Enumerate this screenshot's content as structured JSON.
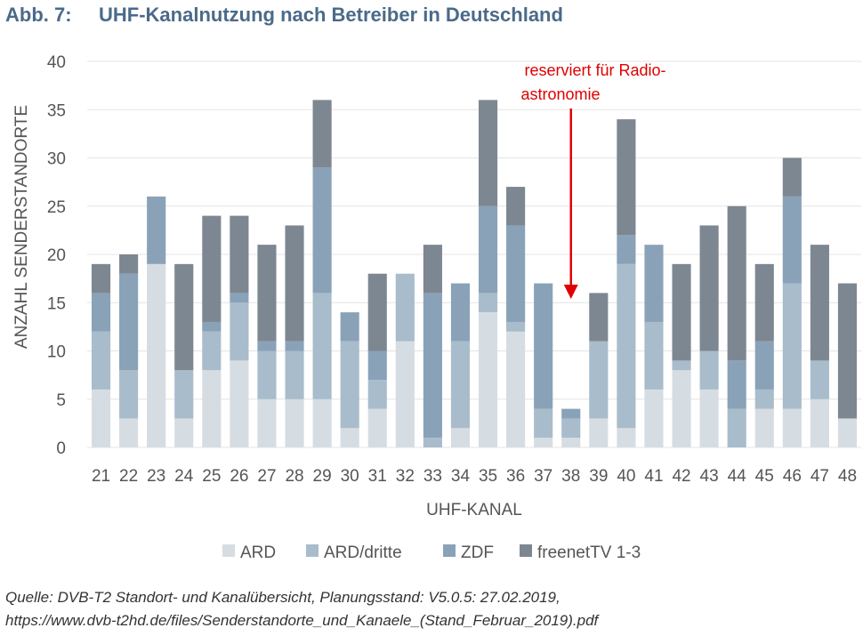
{
  "header": {
    "prefix": "Abb. 7:",
    "title": "UHF-Kanalnutzung nach Betreiber in Deutschland"
  },
  "chart_data": {
    "type": "bar",
    "stacked": true,
    "categories": [
      "21",
      "22",
      "23",
      "24",
      "25",
      "26",
      "27",
      "28",
      "29",
      "30",
      "31",
      "32",
      "33",
      "34",
      "35",
      "36",
      "37",
      "38",
      "39",
      "40",
      "41",
      "42",
      "43",
      "44",
      "45",
      "46",
      "47",
      "48"
    ],
    "series": [
      {
        "name": "ARD",
        "color": "#d6dde2",
        "values": [
          6,
          3,
          19,
          3,
          8,
          9,
          5,
          5,
          5,
          2,
          4,
          11,
          0,
          2,
          14,
          12,
          1,
          1,
          3,
          2,
          6,
          8,
          6,
          0,
          4,
          4,
          5,
          3
        ]
      },
      {
        "name": "ARD/dritte",
        "color": "#a9bccb",
        "values": [
          6,
          5,
          0,
          5,
          4,
          6,
          5,
          5,
          11,
          9,
          3,
          7,
          1,
          9,
          2,
          1,
          3,
          2,
          8,
          17,
          7,
          1,
          4,
          4,
          2,
          13,
          4,
          0
        ]
      },
      {
        "name": "ZDF",
        "color": "#8aa2b8",
        "values": [
          4,
          10,
          7,
          0,
          1,
          1,
          1,
          1,
          13,
          3,
          3,
          0,
          15,
          6,
          9,
          10,
          13,
          1,
          0,
          3,
          8,
          0,
          0,
          5,
          5,
          9,
          0,
          0
        ]
      },
      {
        "name": "freenetTV 1-3",
        "color": "#7d8791",
        "values": [
          3,
          2,
          0,
          11,
          11,
          8,
          10,
          12,
          7,
          0,
          8,
          0,
          5,
          0,
          11,
          4,
          0,
          0,
          5,
          12,
          0,
          10,
          13,
          16,
          8,
          4,
          12,
          14
        ]
      }
    ],
    "xlabel": "UHF-KANAL",
    "ylabel": "ANZAHL SENDERSTANDORTE",
    "ylim": [
      0,
      40
    ],
    "yticks": [
      0,
      5,
      10,
      15,
      20,
      25,
      30,
      35,
      40
    ],
    "grid": true,
    "legend": "bottom",
    "annotation": {
      "lines": [
        "reserviert für Radio-",
        "astronomie"
      ],
      "category": "38",
      "color": "#e00000"
    }
  },
  "source": {
    "line1": "Quelle: DVB-T2 Standort- und Kanalübersicht, Planungsstand: V5.0.5: 27.02.2019,",
    "line2": "https://www.dvb-t2hd.de/files/Senderstandorte_und_Kanaele_(Stand_Februar_2019).pdf"
  }
}
